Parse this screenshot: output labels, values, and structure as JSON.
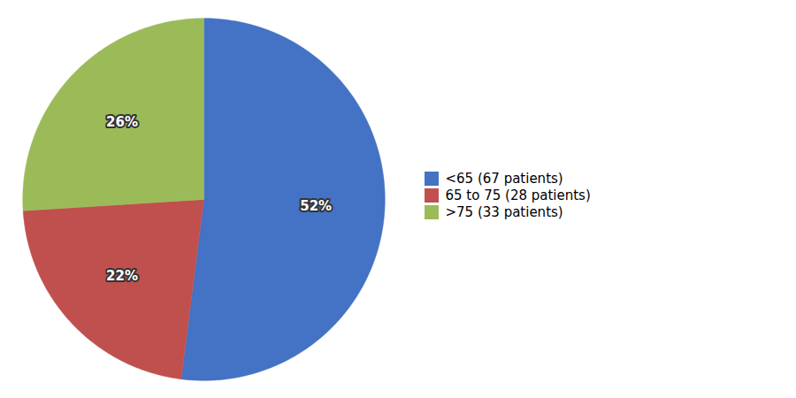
{
  "chart_data": {
    "type": "pie",
    "categories": [
      "<65 (67 patients)",
      "65 to 75 (28 patients)",
      ">75 (33 patients)"
    ],
    "values": [
      52,
      22,
      26
    ],
    "value_labels": [
      "52%",
      "22%",
      "26%"
    ],
    "colors": [
      "#4472C4",
      "#C0504D",
      "#9BBB59"
    ],
    "data_labels": true,
    "legend": "right"
  }
}
